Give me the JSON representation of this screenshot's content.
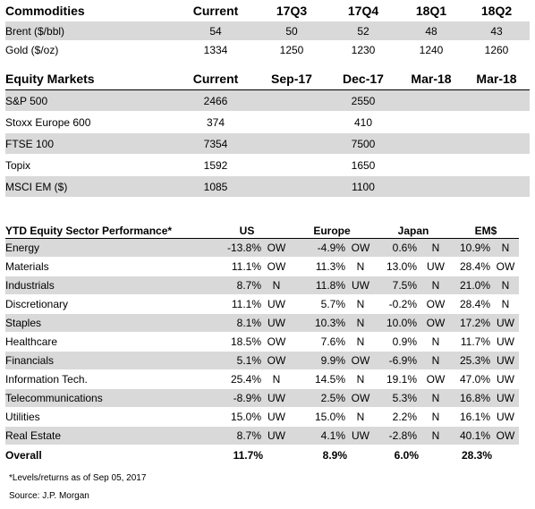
{
  "commodities": {
    "headers": [
      "Commodities",
      "Current",
      "17Q3",
      "17Q4",
      "18Q1",
      "18Q2"
    ],
    "rows": [
      {
        "name": "Brent ($/bbl)",
        "vals": [
          "54",
          "50",
          "52",
          "48",
          "43"
        ]
      },
      {
        "name": "Gold ($/oz)",
        "vals": [
          "1334",
          "1250",
          "1230",
          "1240",
          "1260"
        ]
      }
    ]
  },
  "equity_markets": {
    "headers": [
      "Equity Markets",
      "Current",
      "Sep-17",
      "Dec-17",
      "Mar-18",
      "Mar-18"
    ],
    "rows": [
      {
        "name": "S&P 500",
        "vals": [
          "2466",
          "",
          "2550",
          "",
          ""
        ]
      },
      {
        "name": "Stoxx Europe 600",
        "vals": [
          "374",
          "",
          "410",
          "",
          ""
        ]
      },
      {
        "name": "FTSE 100",
        "vals": [
          "7354",
          "",
          "7500",
          "",
          ""
        ]
      },
      {
        "name": "Topix",
        "vals": [
          "1592",
          "",
          "1650",
          "",
          ""
        ]
      },
      {
        "name": "MSCI EM ($)",
        "vals": [
          "1085",
          "",
          "1100",
          "",
          ""
        ]
      }
    ]
  },
  "sectors": {
    "headers": [
      "YTD Equity Sector Performance*",
      "US",
      "Europe",
      "Japan",
      "EM$"
    ],
    "rows": [
      {
        "name": "Energy",
        "vals": [
          "-13.8%",
          "OW",
          "-4.9%",
          "OW",
          "0.6%",
          "N",
          "10.9%",
          "N"
        ]
      },
      {
        "name": "Materials",
        "vals": [
          "11.1%",
          "OW",
          "11.3%",
          "N",
          "13.0%",
          "UW",
          "28.4%",
          "OW"
        ]
      },
      {
        "name": "Industrials",
        "vals": [
          "8.7%",
          "N",
          "11.8%",
          "UW",
          "7.5%",
          "N",
          "21.0%",
          "N"
        ]
      },
      {
        "name": "Discretionary",
        "vals": [
          "11.1%",
          "UW",
          "5.7%",
          "N",
          "-0.2%",
          "OW",
          "28.4%",
          "N"
        ]
      },
      {
        "name": "Staples",
        "vals": [
          "8.1%",
          "UW",
          "10.3%",
          "N",
          "10.0%",
          "OW",
          "17.2%",
          "UW"
        ]
      },
      {
        "name": "Healthcare",
        "vals": [
          "18.5%",
          "OW",
          "7.6%",
          "N",
          "0.9%",
          "N",
          "11.7%",
          "UW"
        ]
      },
      {
        "name": "Financials",
        "vals": [
          "5.1%",
          "OW",
          "9.9%",
          "OW",
          "-6.9%",
          "N",
          "25.3%",
          "UW"
        ]
      },
      {
        "name": "Information Tech.",
        "vals": [
          "25.4%",
          "N",
          "14.5%",
          "N",
          "19.1%",
          "OW",
          "47.0%",
          "UW"
        ]
      },
      {
        "name": "Telecommunications",
        "vals": [
          "-8.9%",
          "UW",
          "2.5%",
          "OW",
          "5.3%",
          "N",
          "16.8%",
          "UW"
        ]
      },
      {
        "name": "Utilities",
        "vals": [
          "15.0%",
          "UW",
          "15.0%",
          "N",
          "2.2%",
          "N",
          "16.1%",
          "UW"
        ]
      },
      {
        "name": "Real Estate",
        "vals": [
          "8.7%",
          "UW",
          "4.1%",
          "UW",
          "-2.8%",
          "N",
          "40.1%",
          "OW"
        ]
      }
    ],
    "overall": {
      "name": "Overall",
      "vals": [
        "11.7%",
        "",
        "8.9%",
        "",
        "6.0%",
        "",
        "28.3%",
        ""
      ]
    }
  },
  "footnotes": {
    "note": "*Levels/returns as of Sep 05, 2017",
    "source": "Source: J.P. Morgan"
  },
  "colors": {
    "shade": "#d9d9d9"
  }
}
